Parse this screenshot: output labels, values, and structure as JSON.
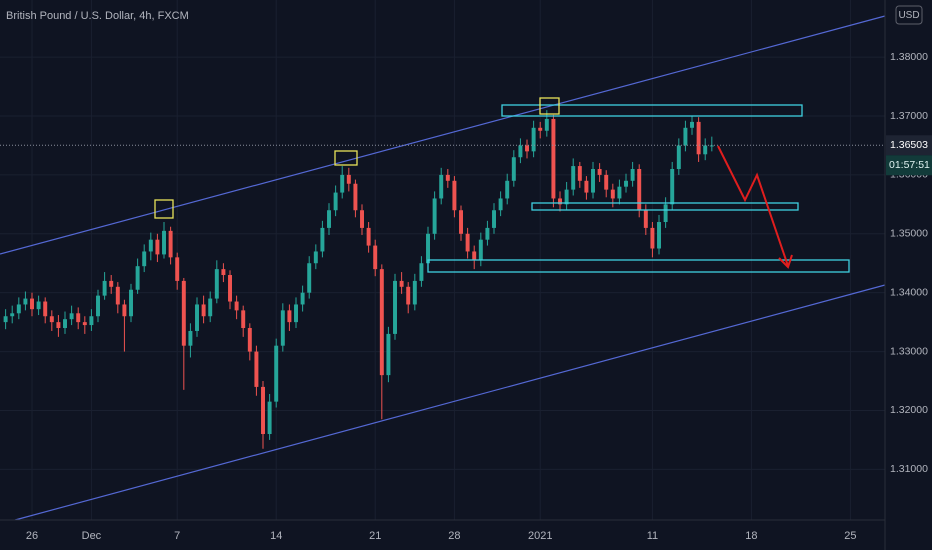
{
  "chart_data": {
    "type": "candlestick",
    "title": "British Pound / U.S. Dollar, 4h, FXCM",
    "currency": "USD",
    "last_price": 1.36503,
    "countdown": "01:57:51",
    "up_color": "#26a69a",
    "down_color": "#ef5350",
    "xlim": [
      -4.85,
      129.24
    ],
    "xticks": [
      {
        "value": 0,
        "label": "26"
      },
      {
        "value": 9,
        "label": "Dec"
      },
      {
        "value": 22,
        "label": "7"
      },
      {
        "value": 37,
        "label": "14"
      },
      {
        "value": 52,
        "label": "21"
      },
      {
        "value": 64,
        "label": "28"
      },
      {
        "value": 77,
        "label": "2021"
      },
      {
        "value": 94,
        "label": "11"
      },
      {
        "value": 109,
        "label": "18"
      },
      {
        "value": 124,
        "label": "25"
      }
    ],
    "ylim": [
      1.3014,
      1.3897
    ],
    "yticks": [
      {
        "value": 1.31,
        "label": "1.31000"
      },
      {
        "value": 1.32,
        "label": "1.32000"
      },
      {
        "value": 1.33,
        "label": "1.33000"
      },
      {
        "value": 1.34,
        "label": "1.34000"
      },
      {
        "value": 1.35,
        "label": "1.35000"
      },
      {
        "value": 1.36,
        "label": "1.36000"
      },
      {
        "value": 1.37,
        "label": "1.37000"
      },
      {
        "value": 1.38,
        "label": "1.38000"
      }
    ],
    "x": [
      -4,
      -3,
      -2,
      -1,
      0,
      1,
      2,
      3,
      4,
      5,
      6,
      7,
      8,
      9,
      10,
      11,
      12,
      13,
      14,
      15,
      16,
      17,
      18,
      19,
      20,
      21,
      22,
      23,
      24,
      25,
      26,
      27,
      28,
      29,
      30,
      31,
      32,
      33,
      34,
      35,
      36,
      37,
      38,
      39,
      40,
      41,
      42,
      43,
      44,
      45,
      46,
      47,
      48,
      49,
      50,
      51,
      52,
      53,
      54,
      55,
      56,
      57,
      58,
      59,
      60,
      61,
      62,
      63,
      64,
      65,
      66,
      67,
      68,
      69,
      70,
      71,
      72,
      73,
      74,
      75,
      76,
      77,
      78,
      79,
      80,
      81,
      82,
      83,
      84,
      85,
      86,
      87,
      88,
      89,
      90,
      91,
      92,
      93,
      94,
      95,
      96,
      97,
      98,
      99,
      100,
      101,
      102,
      103
    ],
    "open": [
      1.335,
      1.336,
      1.3365,
      1.338,
      1.339,
      1.3372,
      1.3385,
      1.336,
      1.335,
      1.334,
      1.3355,
      1.3365,
      1.335,
      1.3345,
      1.336,
      1.3395,
      1.342,
      1.341,
      1.338,
      1.336,
      1.3405,
      1.3445,
      1.347,
      1.349,
      1.3465,
      1.3505,
      1.346,
      1.342,
      1.331,
      1.3335,
      1.338,
      1.336,
      1.339,
      1.344,
      1.343,
      1.3385,
      1.337,
      1.334,
      1.33,
      1.324,
      1.316,
      1.3215,
      1.331,
      1.337,
      1.335,
      1.338,
      1.34,
      1.345,
      1.347,
      1.351,
      1.354,
      1.357,
      1.36,
      1.3585,
      1.354,
      1.351,
      1.348,
      1.344,
      1.326,
      1.333,
      1.342,
      1.341,
      1.338,
      1.342,
      1.345,
      1.35,
      1.356,
      1.36,
      1.359,
      1.354,
      1.35,
      1.347,
      1.3455,
      1.349,
      1.351,
      1.354,
      1.356,
      1.359,
      1.363,
      1.365,
      1.364,
      1.368,
      1.3675,
      1.3695,
      1.356,
      1.355,
      1.3575,
      1.3615,
      1.359,
      1.357,
      1.361,
      1.36,
      1.3575,
      1.356,
      1.358,
      1.359,
      1.361,
      1.354,
      1.351,
      1.3475,
      1.352,
      1.355,
      1.361,
      1.365,
      1.368,
      1.369,
      1.3635,
      1.365
    ],
    "high": [
      1.3372,
      1.3378,
      1.3392,
      1.3402,
      1.34,
      1.3395,
      1.3392,
      1.337,
      1.3362,
      1.3368,
      1.3378,
      1.3375,
      1.336,
      1.3372,
      1.3405,
      1.3435,
      1.343,
      1.3418,
      1.3388,
      1.3415,
      1.3458,
      1.3482,
      1.3502,
      1.35,
      1.352,
      1.3512,
      1.3468,
      1.3425,
      1.3348,
      1.3392,
      1.3395,
      1.3402,
      1.3455,
      1.345,
      1.3438,
      1.3395,
      1.3378,
      1.3348,
      1.331,
      1.325,
      1.3228,
      1.3322,
      1.3382,
      1.338,
      1.3392,
      1.3412,
      1.3462,
      1.3482,
      1.3522,
      1.3552,
      1.3582,
      1.3615,
      1.3612,
      1.3592,
      1.355,
      1.352,
      1.349,
      1.3448,
      1.3342,
      1.3432,
      1.3435,
      1.3418,
      1.3432,
      1.3462,
      1.3512,
      1.3572,
      1.3612,
      1.361,
      1.3598,
      1.3548,
      1.351,
      1.348,
      1.3502,
      1.3522,
      1.3552,
      1.3572,
      1.3602,
      1.3642,
      1.3662,
      1.366,
      1.3692,
      1.369,
      1.371,
      1.3702,
      1.3572,
      1.3588,
      1.3628,
      1.3622,
      1.3598,
      1.3622,
      1.362,
      1.3608,
      1.3585,
      1.3592,
      1.3602,
      1.3622,
      1.3618,
      1.355,
      1.352,
      1.3532,
      1.3562,
      1.3622,
      1.3662,
      1.3692,
      1.37,
      1.3698,
      1.3662,
      1.3665
    ],
    "low": [
      1.3338,
      1.3348,
      1.3355,
      1.337,
      1.336,
      1.3362,
      1.3348,
      1.3335,
      1.3325,
      1.333,
      1.3345,
      1.3338,
      1.333,
      1.3335,
      1.335,
      1.3388,
      1.3398,
      1.3365,
      1.33,
      1.335,
      1.3398,
      1.3435,
      1.3455,
      1.3452,
      1.3458,
      1.3448,
      1.3405,
      1.3235,
      1.329,
      1.3325,
      1.3348,
      1.335,
      1.3382,
      1.3418,
      1.3372,
      1.3355,
      1.3325,
      1.3285,
      1.3225,
      1.3135,
      1.315,
      1.3205,
      1.33,
      1.3335,
      1.334,
      1.3368,
      1.339,
      1.344,
      1.346,
      1.3498,
      1.353,
      1.356,
      1.3572,
      1.3528,
      1.3498,
      1.3468,
      1.3428,
      1.3185,
      1.3248,
      1.332,
      1.3398,
      1.3365,
      1.337,
      1.341,
      1.344,
      1.349,
      1.355,
      1.3578,
      1.3528,
      1.3488,
      1.3458,
      1.344,
      1.3445,
      1.348,
      1.35,
      1.353,
      1.355,
      1.358,
      1.362,
      1.3628,
      1.363,
      1.3662,
      1.3665,
      1.3545,
      1.3538,
      1.354,
      1.3565,
      1.3578,
      1.3558,
      1.356,
      1.3588,
      1.3562,
      1.3545,
      1.355,
      1.357,
      1.358,
      1.3528,
      1.3498,
      1.346,
      1.3465,
      1.351,
      1.354,
      1.36,
      1.364,
      1.3668,
      1.3622,
      1.3625,
      1.364
    ],
    "close": [
      1.336,
      1.3365,
      1.338,
      1.339,
      1.3372,
      1.3385,
      1.336,
      1.335,
      1.334,
      1.3355,
      1.3365,
      1.335,
      1.3345,
      1.336,
      1.3395,
      1.342,
      1.341,
      1.338,
      1.336,
      1.3405,
      1.3445,
      1.347,
      1.349,
      1.3465,
      1.3505,
      1.346,
      1.342,
      1.331,
      1.3335,
      1.338,
      1.336,
      1.339,
      1.344,
      1.343,
      1.3385,
      1.337,
      1.334,
      1.33,
      1.324,
      1.316,
      1.3215,
      1.331,
      1.337,
      1.335,
      1.338,
      1.34,
      1.345,
      1.347,
      1.351,
      1.354,
      1.357,
      1.36,
      1.3585,
      1.354,
      1.351,
      1.348,
      1.344,
      1.326,
      1.333,
      1.342,
      1.341,
      1.338,
      1.342,
      1.345,
      1.35,
      1.356,
      1.36,
      1.359,
      1.354,
      1.35,
      1.347,
      1.3455,
      1.349,
      1.351,
      1.354,
      1.356,
      1.359,
      1.363,
      1.365,
      1.364,
      1.368,
      1.3675,
      1.3695,
      1.356,
      1.355,
      1.3575,
      1.3615,
      1.359,
      1.357,
      1.361,
      1.36,
      1.3575,
      1.356,
      1.358,
      1.359,
      1.361,
      1.354,
      1.351,
      1.3475,
      1.352,
      1.355,
      1.361,
      1.365,
      1.368,
      1.369,
      1.3635,
      1.365,
      1.365
    ]
  }
}
